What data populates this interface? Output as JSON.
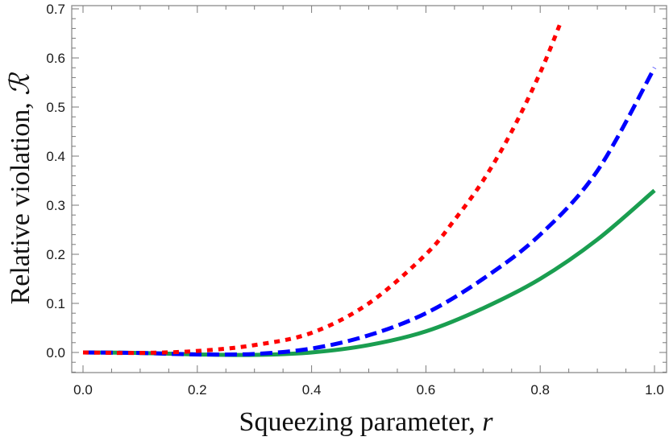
{
  "chart_data": {
    "type": "line",
    "title": "",
    "xlabel": "Squeezing parameter, r",
    "ylabel": "Relative violation, ℛ",
    "xlim": [
      0.0,
      1.0
    ],
    "ylim": [
      -0.04,
      0.71
    ],
    "x_ticks": [
      "0.0",
      "0.2",
      "0.4",
      "0.6",
      "0.8",
      "1.0"
    ],
    "y_ticks": [
      "0.0",
      "0.1",
      "0.2",
      "0.3",
      "0.4",
      "0.5",
      "0.6",
      "0.7"
    ],
    "grid": false,
    "legend": "none",
    "series": [
      {
        "name": "dotted-red",
        "color": "#ff0000",
        "style": "dotted",
        "x": [
          0.0,
          0.1,
          0.2,
          0.3,
          0.4,
          0.5,
          0.6,
          0.65,
          0.7,
          0.75,
          0.8,
          0.835
        ],
        "y": [
          0.0,
          -0.001,
          0.003,
          0.015,
          0.04,
          0.1,
          0.2,
          0.27,
          0.35,
          0.45,
          0.57,
          0.67
        ]
      },
      {
        "name": "dashed-blue",
        "color": "#0000ff",
        "style": "dashed",
        "x": [
          0.0,
          0.1,
          0.2,
          0.3,
          0.4,
          0.5,
          0.6,
          0.7,
          0.8,
          0.9,
          1.0
        ],
        "y": [
          0.0,
          -0.001,
          -0.004,
          -0.003,
          0.008,
          0.035,
          0.08,
          0.15,
          0.24,
          0.37,
          0.58
        ]
      },
      {
        "name": "solid-green",
        "color": "#1a9e50",
        "style": "solid",
        "x": [
          0.0,
          0.1,
          0.2,
          0.3,
          0.4,
          0.5,
          0.6,
          0.7,
          0.8,
          0.9,
          1.0
        ],
        "y": [
          0.0,
          -0.001,
          -0.004,
          -0.005,
          0.0,
          0.015,
          0.043,
          0.09,
          0.15,
          0.23,
          0.33
        ]
      }
    ]
  },
  "axes": {
    "x_title": "Squeezing parameter, ",
    "x_title_var": "r",
    "y_title": "Relative violation, ",
    "y_title_var": "ℛ"
  }
}
